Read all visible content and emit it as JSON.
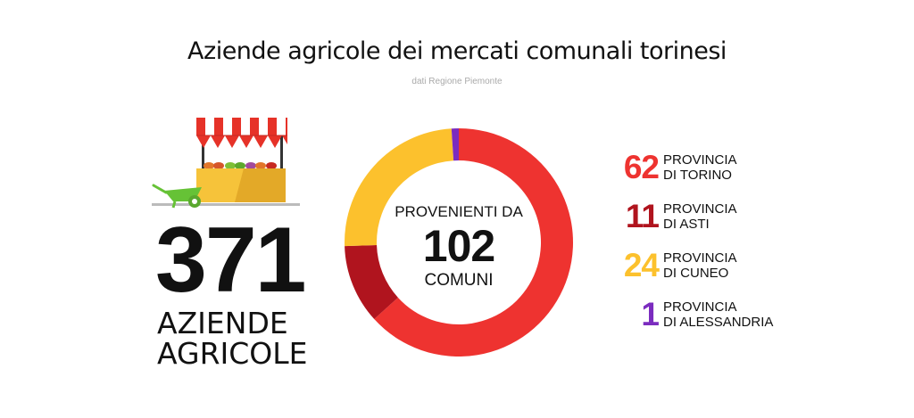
{
  "header": {
    "title": "Aziende agricole dei mercati comunali torinesi",
    "subtitle": "dati Regione Piemonte"
  },
  "summary": {
    "total": "371",
    "label_line1": "AZIENDE",
    "label_line2": "AGRICOLE"
  },
  "center": {
    "top": "PROVENIENTI DA",
    "number": "102",
    "bottom": "COMUNI"
  },
  "icons": {
    "stall": "market-stall-icon",
    "wheelbarrow": "wheelbarrow-icon"
  },
  "colors": {
    "torino": "#ee3330",
    "asti": "#b0141e",
    "cuneo": "#fcc12d",
    "alessandria": "#7b2cbf",
    "stall_awning_red": "#e63228",
    "stall_counter": "#f6c33a",
    "wheelbarrow": "#66c236"
  },
  "chart_data": {
    "type": "pie",
    "title": "Aziende agricole dei mercati comunali torinesi",
    "donut": true,
    "series": [
      {
        "name": "PROVINCIA DI TORINO",
        "value": 62,
        "color": "#ee3330"
      },
      {
        "name": "PROVINCIA DI ASTI",
        "value": 11,
        "color": "#b0141e"
      },
      {
        "name": "PROVINCIA DI CUNEO",
        "value": 24,
        "color": "#fcc12d"
      },
      {
        "name": "PROVINCIA DI ALESSANDRIA",
        "value": 1,
        "color": "#7b2cbf"
      }
    ],
    "legend_position": "right"
  },
  "legend": [
    {
      "value": "62",
      "line1": "PROVINCIA",
      "line2": "DI TORINO"
    },
    {
      "value": "11",
      "line1": "PROVINCIA",
      "line2": "DI ASTI"
    },
    {
      "value": "24",
      "line1": "PROVINCIA",
      "line2": "DI CUNEO"
    },
    {
      "value": "1",
      "line1": "PROVINCIA",
      "line2": "DI ALESSANDRIA"
    }
  ]
}
